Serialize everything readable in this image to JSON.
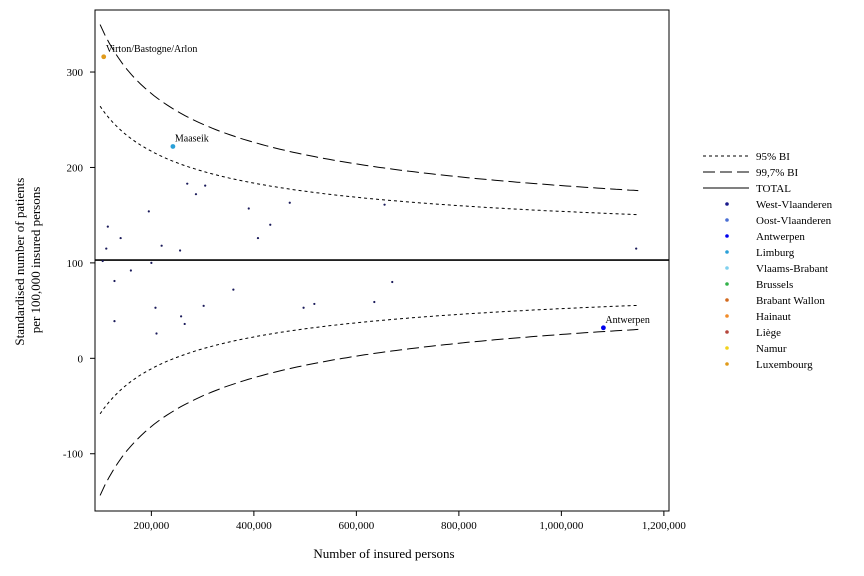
{
  "chart_data": {
    "type": "scatter",
    "title": "",
    "xlabel": "Number of insured persons",
    "ylabel_lines": [
      "Standardised number of patients",
      "per 100,000 insured persons"
    ],
    "xlim": [
      90000,
      1210000
    ],
    "ylim": [
      -160,
      365
    ],
    "x_ticks": [
      200000,
      400000,
      600000,
      800000,
      1000000,
      1200000
    ],
    "x_tick_labels": [
      "200,000",
      "400,000",
      "600,000",
      "800,000",
      "1,000,000",
      "1,200,000"
    ],
    "y_ticks": [
      -100,
      0,
      100,
      200,
      300
    ],
    "y_tick_labels": [
      "-100",
      "0",
      "100",
      "200",
      "300"
    ],
    "reference_line": {
      "name": "TOTAL",
      "y": 103
    },
    "funnel_limits": [
      {
        "name": "95% BI",
        "style": "short-dash",
        "z": 1.96
      },
      {
        "name": "99,7% BI",
        "style": "long-dash",
        "z": 3.0
      }
    ],
    "funnel_k": 26000,
    "funnel_x_range": [
      100000,
      1150000
    ],
    "legend": {
      "position": "right",
      "lines": [
        {
          "label": "95% BI",
          "style": "short-dash"
        },
        {
          "label": "99,7% BI",
          "style": "long-dash"
        },
        {
          "label": "TOTAL",
          "style": "solid"
        }
      ],
      "provinces": [
        {
          "label": "West-Vlaanderen",
          "color": "#1a1a8c"
        },
        {
          "label": "Oost-Vlaanderen",
          "color": "#4a6fd4"
        },
        {
          "label": "Antwerpen",
          "color": "#0000ee"
        },
        {
          "label": "Limburg",
          "color": "#2aa0d8"
        },
        {
          "label": "Vlaams-Brabant",
          "color": "#7fd0ee"
        },
        {
          "label": "Brussels",
          "color": "#33b24a"
        },
        {
          "label": "Brabant Wallon",
          "color": "#d2691e"
        },
        {
          "label": "Hainaut",
          "color": "#f28c28"
        },
        {
          "label": "Liège",
          "color": "#b5463c"
        },
        {
          "label": "Namur",
          "color": "#f2d21b"
        },
        {
          "label": "Luxembourg",
          "color": "#e09a1a"
        }
      ]
    },
    "highlighted_points": [
      {
        "x": 107000,
        "y": 316,
        "label": "Virton/Bastogne/Arlon",
        "color": "#e09a1a"
      },
      {
        "x": 242000,
        "y": 222,
        "label": "Maaseik",
        "color": "#2aa0d8"
      },
      {
        "x": 1082000,
        "y": 32,
        "label": "Antwerpen",
        "color": "#0000ee"
      }
    ],
    "points": [
      [
        105000,
        102
      ],
      [
        112000,
        115
      ],
      [
        115000,
        138
      ],
      [
        128000,
        81
      ],
      [
        128000,
        39
      ],
      [
        140000,
        126
      ],
      [
        160000,
        92
      ],
      [
        195000,
        154
      ],
      [
        200000,
        100
      ],
      [
        208000,
        53
      ],
      [
        210000,
        26
      ],
      [
        220000,
        118
      ],
      [
        256000,
        113
      ],
      [
        258000,
        44
      ],
      [
        265000,
        36
      ],
      [
        270000,
        183
      ],
      [
        287000,
        172
      ],
      [
        302000,
        55
      ],
      [
        305000,
        181
      ],
      [
        360000,
        72
      ],
      [
        390000,
        157
      ],
      [
        408000,
        126
      ],
      [
        432000,
        140
      ],
      [
        470000,
        163
      ],
      [
        497000,
        53
      ],
      [
        518000,
        57
      ],
      [
        635000,
        59
      ],
      [
        655000,
        161
      ],
      [
        670000,
        80
      ],
      [
        1146000,
        115
      ]
    ]
  }
}
